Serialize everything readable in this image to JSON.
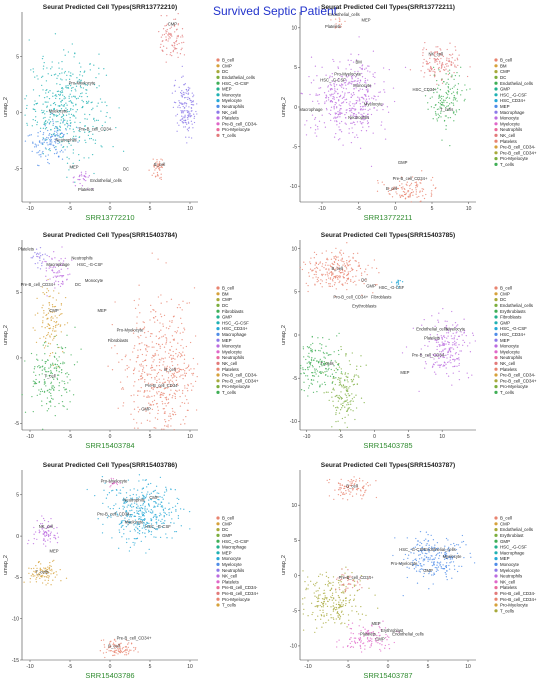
{
  "figure_title": "Survived Septic Patient",
  "colors": {
    "title": "#2233cc",
    "sample_label": "#2e8b2e",
    "palette": [
      "#e8836f",
      "#d6a13a",
      "#a7a93a",
      "#7cae3e",
      "#3fae55",
      "#22b08d",
      "#1fb1b3",
      "#24a8d6",
      "#4e8ce8",
      "#8c79e8",
      "#bb6be0",
      "#e066c8",
      "#ea6b9c",
      "#e27a7a"
    ]
  },
  "chart_data": [
    {
      "type": "scatter",
      "title": "Seurat Predicted Cell Types(SRR13772210)",
      "xlabel": "SRR13772210",
      "ylabel": "umap_2",
      "xlim": [
        -11,
        11
      ],
      "ylim": [
        -8,
        9
      ],
      "xticks": [
        -10,
        -5,
        0,
        5,
        10
      ],
      "yticks": [
        -5,
        0,
        5
      ],
      "legend": [
        "B_cell",
        "CMP",
        "DC",
        "Endothelial_cells",
        "HSC_-G-CSF",
        "MEP",
        "Monocyte",
        "Myelocyte",
        "Neutrophils",
        "NK_cell",
        "Platelets",
        "Pre-B_cell_CD34-",
        "Pro-Myelocyte",
        "T_cells"
      ],
      "clusters": [
        {
          "type": "Monocyte",
          "cx": -5.5,
          "cy": 0.5,
          "sx": 2.4,
          "sy": 2.2,
          "n": 420
        },
        {
          "type": "Neutrophils",
          "cx": -7.5,
          "cy": -2.5,
          "sx": 1.3,
          "sy": 1.0,
          "n": 120
        },
        {
          "type": "NK_cell",
          "cx": 9.5,
          "cy": 0.5,
          "sx": 0.8,
          "sy": 1.3,
          "n": 150
        },
        {
          "type": "T_cells",
          "cx": 7.8,
          "cy": 6.5,
          "sx": 0.8,
          "sy": 1.0,
          "n": 90
        },
        {
          "type": "B_cell",
          "cx": 6.0,
          "cy": -5.0,
          "sx": 0.35,
          "sy": 0.5,
          "n": 45
        },
        {
          "type": "Platelets",
          "cx": -3.5,
          "cy": -6.0,
          "sx": 0.6,
          "sy": 0.4,
          "n": 30
        }
      ],
      "labels": [
        {
          "text": "Pro-Myelocyte",
          "x": -3.5,
          "y": 2.5
        },
        {
          "text": "Myelocyte",
          "x": -6.5,
          "y": 0.0
        },
        {
          "text": "Pre-B_cell_CD34-",
          "x": -1.8,
          "y": -1.6
        },
        {
          "text": "Neutrophils",
          "x": -5.5,
          "y": -2.6
        },
        {
          "text": "CMP",
          "x": 7.8,
          "y": 7.8
        },
        {
          "text": "DC",
          "x": 2.0,
          "y": -5.2
        },
        {
          "text": "MEP",
          "x": -4.5,
          "y": -5.0
        },
        {
          "text": "Endothelial_cells",
          "x": -0.5,
          "y": -6.2
        },
        {
          "text": "Platelets",
          "x": -3.0,
          "y": -7.0
        },
        {
          "text": "B_cell",
          "x": 6.2,
          "y": -4.8
        }
      ]
    },
    {
      "type": "scatter",
      "title": "Seurat Predicted Cell Types(SRR13772211)",
      "xlabel": "SRR13772211",
      "ylabel": "umap_2",
      "xlim": [
        -13,
        11
      ],
      "ylim": [
        -12,
        12
      ],
      "xticks": [
        -10,
        -5,
        0,
        5,
        10
      ],
      "yticks": [
        -10,
        -5,
        0,
        5,
        10
      ],
      "legend": [
        "B_cell",
        "BM",
        "CMP",
        "DC",
        "Endothelial_cells",
        "GMP",
        "HSC_-G-CSF",
        "HSC_CD34+",
        "MEP",
        "Macrophage",
        "Monocyte",
        "Myelocyte",
        "Neutrophils",
        "NK_cell",
        "Platelets",
        "Pre-B_cell_CD34-",
        "Pre-B_cell_CD34+",
        "Pro-Myelocyte",
        "T_cells"
      ],
      "clusters": [
        {
          "type": "Monocyte",
          "cx": -6.5,
          "cy": 1.0,
          "sx": 2.6,
          "sy": 2.4,
          "n": 420
        },
        {
          "type": "NK_cell",
          "cx": 6.0,
          "cy": 5.5,
          "sx": 1.4,
          "sy": 1.2,
          "n": 130
        },
        {
          "type": "T_cells",
          "cx": 7.0,
          "cy": 1.0,
          "sx": 1.2,
          "sy": 1.6,
          "n": 140
        },
        {
          "type": "B_cell",
          "cx": 2.0,
          "cy": -10.5,
          "sx": 1.8,
          "sy": 0.9,
          "n": 110
        },
        {
          "type": "Platelets",
          "cx": -8.0,
          "cy": 10.5,
          "sx": 0.5,
          "sy": 0.4,
          "n": 15
        }
      ],
      "labels": [
        {
          "text": "Endothelial_cells",
          "x": -7.0,
          "y": 11.5
        },
        {
          "text": "MEP",
          "x": -4.0,
          "y": 10.8
        },
        {
          "text": "Platelets",
          "x": -8.5,
          "y": 10.0
        },
        {
          "text": "BM",
          "x": -5.0,
          "y": 5.5
        },
        {
          "text": "Pro-Myelocyte",
          "x": -6.5,
          "y": 4.0
        },
        {
          "text": "HSC_-G-CSF",
          "x": -8.5,
          "y": 3.2
        },
        {
          "text": "Monocyte",
          "x": -4.5,
          "y": 2.5
        },
        {
          "text": "Macrophage",
          "x": -11.5,
          "y": -0.5
        },
        {
          "text": "Myelocyte",
          "x": -3.0,
          "y": 0.2
        },
        {
          "text": "Neutrophils",
          "x": -5.0,
          "y": -1.5
        },
        {
          "text": "NK_cell",
          "x": 5.5,
          "y": 6.5
        },
        {
          "text": "HSC_CD34+",
          "x": 4.0,
          "y": 2.0
        },
        {
          "text": "T_cells",
          "x": 7.0,
          "y": -0.5
        },
        {
          "text": "GMP",
          "x": 1.0,
          "y": -7.2
        },
        {
          "text": "Pre-B_cell_CD34+",
          "x": 2.0,
          "y": -9.2
        },
        {
          "text": "B_cell",
          "x": -0.5,
          "y": -10.5
        }
      ]
    },
    {
      "type": "scatter",
      "title": "Seurat Predicted Cell Types(SRR15403784)",
      "xlabel": "SRR15403784",
      "ylabel": "umap_2",
      "xlim": [
        -11,
        11
      ],
      "ylim": [
        -5.5,
        9
      ],
      "xticks": [
        -10,
        -5,
        0,
        5,
        10
      ],
      "yticks": [
        -5,
        0,
        5
      ],
      "legend": [
        "B_cell",
        "BM",
        "CMP",
        "DC",
        "Fibroblasts",
        "GMP",
        "HSC_-G-CSF",
        "HSC_CD34+",
        "Macrophage",
        "MEP",
        "Monocyte",
        "Myelocyte",
        "Neutrophils",
        "NK_cell",
        "Platelets",
        "Pre-B_cell_CD34-",
        "Pre-B_cell_CD34+",
        "Pro-Myelocyte",
        "T_cells"
      ],
      "clusters": [
        {
          "type": "B_cell",
          "cx": 6.5,
          "cy": -1.0,
          "sx": 2.3,
          "sy": 2.6,
          "n": 520
        },
        {
          "type": "T_cells",
          "cx": -7.5,
          "cy": -1.5,
          "sx": 1.4,
          "sy": 1.4,
          "n": 180
        },
        {
          "type": "Pre-B_cell_CD34-",
          "cx": -7.5,
          "cy": 2.8,
          "sx": 0.8,
          "sy": 1.3,
          "n": 110
        },
        {
          "type": "Monocyte",
          "cx": -6.5,
          "cy": 6.5,
          "sx": 0.9,
          "sy": 0.7,
          "n": 70
        },
        {
          "type": "MEP",
          "cx": -9.0,
          "cy": 7.8,
          "sx": 0.5,
          "sy": 0.4,
          "n": 25
        }
      ],
      "labels": [
        {
          "text": "Platelets",
          "x": -10.5,
          "y": 8.2
        },
        {
          "text": "Macrophage",
          "x": -6.5,
          "y": 7.0
        },
        {
          "text": "Neutrophils",
          "x": -3.5,
          "y": 7.5
        },
        {
          "text": "HSC_-G-CSF",
          "x": -2.5,
          "y": 7.0
        },
        {
          "text": "Monocyte",
          "x": -2.0,
          "y": 5.8
        },
        {
          "text": "Pre-B_cell_CD34+",
          "x": -9.0,
          "y": 5.5
        },
        {
          "text": "DC",
          "x": -4.0,
          "y": 5.5
        },
        {
          "text": "CMP",
          "x": -7.0,
          "y": 3.5
        },
        {
          "text": "MEP",
          "x": -1.0,
          "y": 3.5
        },
        {
          "text": "Pro-Myelocyte",
          "x": 2.5,
          "y": 2.0
        },
        {
          "text": "Fibroblasts",
          "x": 1.0,
          "y": 1.2
        },
        {
          "text": "T_cell",
          "x": -7.5,
          "y": -1.5
        },
        {
          "text": "B_cell",
          "x": 7.5,
          "y": -1.0
        },
        {
          "text": "Pre-B_cell_CD34-",
          "x": 6.5,
          "y": -2.2
        },
        {
          "text": "GMP",
          "x": 4.5,
          "y": -4.0
        }
      ]
    },
    {
      "type": "scatter",
      "title": "Seurat Predicted Cell Types(SRR15403785)",
      "xlabel": "SRR15403785",
      "ylabel": "umap_2",
      "xlim": [
        -11,
        15
      ],
      "ylim": [
        -11,
        11
      ],
      "xticks": [
        -10,
        -5,
        0,
        5,
        10
      ],
      "yticks": [
        -10,
        -5,
        0,
        5,
        10
      ],
      "legend": [
        "B_cell",
        "CMP",
        "DC",
        "Endothelial_cells",
        "Erythroblasts",
        "Fibroblasts",
        "GMP",
        "HSC_-G-CSF",
        "HSC_CD34+",
        "MEP",
        "Monocyte",
        "Myelocyte",
        "Neutrophils",
        "NK_cell",
        "Platelets",
        "Pre-B_cell_CD34-",
        "Pre-B_cell_CD34+",
        "Pro-Myelocyte",
        "T_cells"
      ],
      "clusters": [
        {
          "type": "B_cell",
          "cx": -5.5,
          "cy": 7.5,
          "sx": 2.5,
          "sy": 1.2,
          "n": 240
        },
        {
          "type": "T_cells",
          "cx": -8.5,
          "cy": -3.5,
          "sx": 1.6,
          "sy": 1.6,
          "n": 170
        },
        {
          "type": "Pro-Myelocyte",
          "cx": -4.5,
          "cy": -6.5,
          "sx": 1.3,
          "sy": 2.2,
          "n": 160
        },
        {
          "type": "Monocyte",
          "cx": 10.5,
          "cy": -1.5,
          "sx": 2.0,
          "sy": 1.6,
          "n": 210
        },
        {
          "type": "HSC_-G-CSF",
          "cx": 3.5,
          "cy": 6.0,
          "sx": 0.3,
          "sy": 0.3,
          "n": 15
        }
      ],
      "labels": [
        {
          "text": "B_cell",
          "x": -5.5,
          "y": 7.5
        },
        {
          "text": "DC",
          "x": -1.5,
          "y": 6.2
        },
        {
          "text": "GMP",
          "x": -0.5,
          "y": 5.5
        },
        {
          "text": "HSC_-G-CSF",
          "x": 2.5,
          "y": 5.3
        },
        {
          "text": "Pro-B_cell_CD34+",
          "x": -3.5,
          "y": 4.2
        },
        {
          "text": "Fibroblasts",
          "x": 1.0,
          "y": 4.2
        },
        {
          "text": "Erythroblasts",
          "x": -1.5,
          "y": 3.2
        },
        {
          "text": "Endothelial_cells",
          "x": 8.5,
          "y": 0.5
        },
        {
          "text": "Myelocyte",
          "x": 12.0,
          "y": 0.5
        },
        {
          "text": "Platelets",
          "x": 8.5,
          "y": -0.5
        },
        {
          "text": "Pre-B_cell_CD34-",
          "x": 8.0,
          "y": -2.5
        },
        {
          "text": "MEP",
          "x": 4.5,
          "y": -4.5
        },
        {
          "text": "T_cells",
          "x": -7.0,
          "y": -3.5
        }
      ]
    },
    {
      "type": "scatter",
      "title": "Seurat Predicted Cell Types(SRR15403786)",
      "xlabel": "SRR15403786",
      "ylabel": "umap_2",
      "xlim": [
        -11,
        11
      ],
      "ylim": [
        -15,
        8
      ],
      "xticks": [
        -10,
        -5,
        0,
        5,
        10
      ],
      "yticks": [
        -15,
        -10,
        -5,
        0,
        5
      ],
      "legend": [
        "B_cell",
        "CMP",
        "DC",
        "GMP",
        "HSC_-G-CSF",
        "Macrophage",
        "MEP",
        "Monocyte",
        "Myelocyte",
        "Neutrophils",
        "NK_cell",
        "Platelets",
        "Pre-B_cell_CD34-",
        "Pre-B_cell_CD34+",
        "Pro-Myelocyte",
        "T_cells"
      ],
      "clusters": [
        {
          "type": "Monocyte",
          "cx": 4.0,
          "cy": 3.0,
          "sx": 2.2,
          "sy": 1.8,
          "n": 380
        },
        {
          "type": "NK_cell",
          "cx": -8.0,
          "cy": 0.5,
          "sx": 0.8,
          "sy": 0.8,
          "n": 70
        },
        {
          "type": "T_cells",
          "cx": -8.5,
          "cy": -4.5,
          "sx": 1.0,
          "sy": 0.7,
          "n": 90
        },
        {
          "type": "B_cell",
          "cx": 1.0,
          "cy": -13.5,
          "sx": 1.2,
          "sy": 0.5,
          "n": 90
        },
        {
          "type": "Platelets",
          "cx": 0.5,
          "cy": 6.5,
          "sx": 0.4,
          "sy": 0.4,
          "n": 15
        }
      ],
      "labels": [
        {
          "text": "Pro-Myelocyte",
          "x": 0.5,
          "y": 6.5
        },
        {
          "text": "Neutrophils",
          "x": 3.0,
          "y": 4.2
        },
        {
          "text": "CMP",
          "x": 5.5,
          "y": 4.5
        },
        {
          "text": "Pre-B_cell_CD34-",
          "x": 0.5,
          "y": 2.5
        },
        {
          "text": "Myelocyte",
          "x": 3.0,
          "y": 1.5
        },
        {
          "text": "HSC_-G-CSF",
          "x": 6.0,
          "y": 1.0
        },
        {
          "text": "NK_cell",
          "x": -8.0,
          "y": 1.0
        },
        {
          "text": "MEP",
          "x": -7.0,
          "y": -2.0
        },
        {
          "text": "T_cells",
          "x": -8.5,
          "y": -4.5
        },
        {
          "text": "Pre-B_cell_CD34+",
          "x": 3.0,
          "y": -12.5
        },
        {
          "text": "B_cell",
          "x": 0.5,
          "y": -13.5
        }
      ]
    },
    {
      "type": "scatter",
      "title": "Seurat Predicted Cell Types(SRR15403787)",
      "xlabel": "SRR15403787",
      "ylabel": "umap_2",
      "xlim": [
        -11,
        11
      ],
      "ylim": [
        -12,
        15
      ],
      "xticks": [
        -10,
        -5,
        0,
        5,
        10
      ],
      "yticks": [
        -10,
        -5,
        0,
        5,
        10
      ],
      "legend": [
        "B_cell",
        "CMP",
        "Endothelial_cells",
        "Erythroblast",
        "GMP",
        "HSC_-G-CSF",
        "Macrophage",
        "MEP",
        "Monocyte",
        "Myelocyte",
        "Neutrophils",
        "NK_cell",
        "Platelets",
        "Pre-B_cell_CD34-",
        "Pre-B_cell_CD34+",
        "Pro-Myelocyte",
        "T_cells"
      ],
      "clusters": [
        {
          "type": "B_cell",
          "cx": -4.5,
          "cy": 12.5,
          "sx": 1.3,
          "sy": 0.9,
          "n": 90
        },
        {
          "type": "T_cells",
          "cx": -7.0,
          "cy": -3.5,
          "sx": 1.8,
          "sy": 2.0,
          "n": 230
        },
        {
          "type": "NK_cell",
          "cx": -2.5,
          "cy": -9.0,
          "sx": 1.6,
          "sy": 1.0,
          "n": 110
        },
        {
          "type": "Monocyte",
          "cx": 5.5,
          "cy": 2.5,
          "sx": 2.0,
          "sy": 1.5,
          "n": 230
        },
        {
          "type": "Pre-B_cell_CD34-",
          "cx": -5.0,
          "cy": -1.0,
          "sx": 1.0,
          "sy": 0.8,
          "n": 40
        }
      ],
      "labels": [
        {
          "text": "B_cell",
          "x": -4.5,
          "y": 12.5
        },
        {
          "text": "HSC_-G-CSF",
          "x": 3.0,
          "y": 3.5
        },
        {
          "text": "Endothelial_cells",
          "x": 6.5,
          "y": 3.5
        },
        {
          "text": "Myelocyte",
          "x": 8.0,
          "y": 2.5
        },
        {
          "text": "Pro-Myelocyte",
          "x": 2.0,
          "y": 1.5
        },
        {
          "text": "GMP",
          "x": 5.0,
          "y": 0.5
        },
        {
          "text": "Pre-B_cell_CD34+",
          "x": -4.0,
          "y": -0.5
        },
        {
          "text": "MEP",
          "x": -1.5,
          "y": -7.0
        },
        {
          "text": "Erythroblast",
          "x": 0.5,
          "y": -8.0
        },
        {
          "text": "Platelets",
          "x": -2.5,
          "y": -8.5
        },
        {
          "text": "Endothelial_cells",
          "x": 2.5,
          "y": -8.5
        },
        {
          "text": "CMP",
          "x": -1.0,
          "y": -9.2
        }
      ]
    }
  ]
}
